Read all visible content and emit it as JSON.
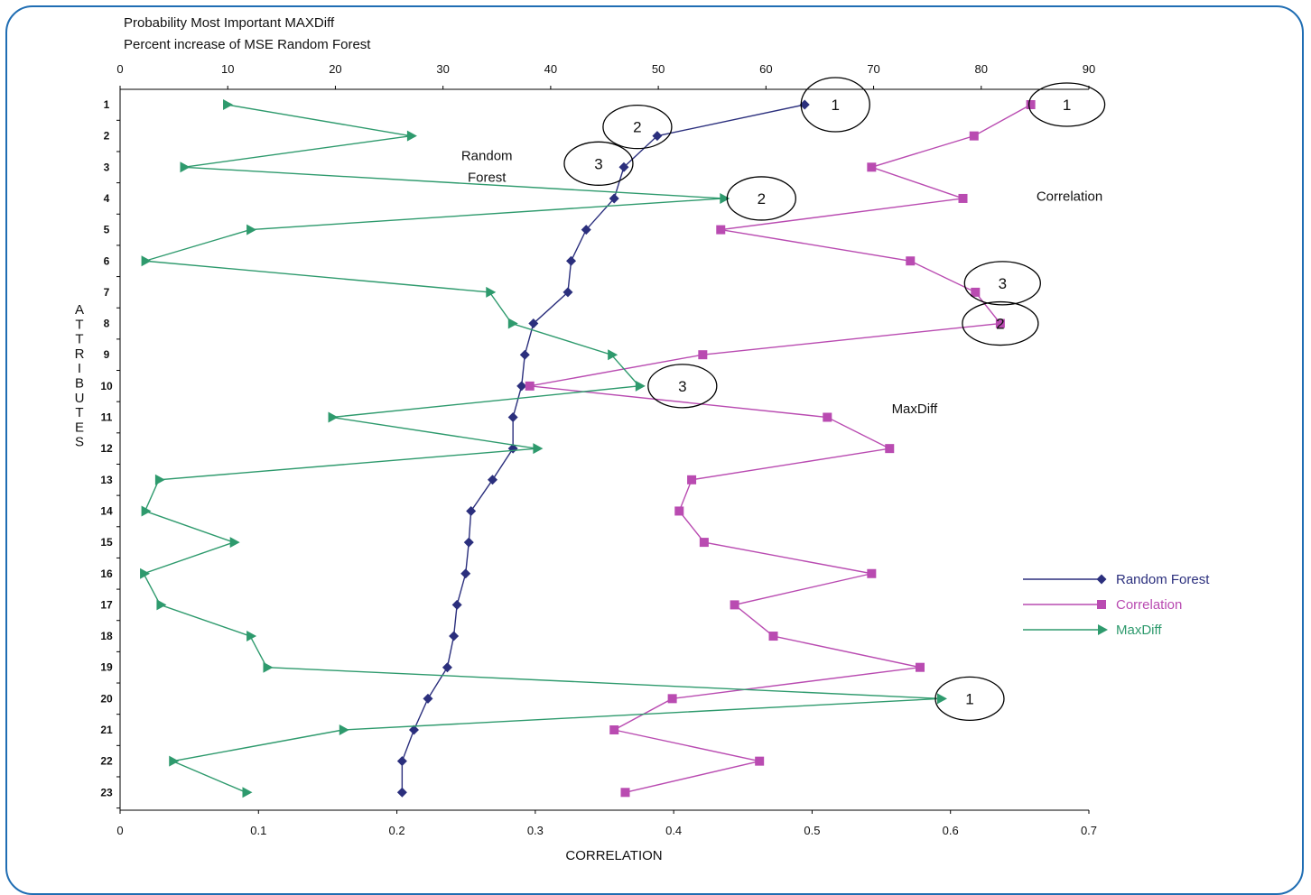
{
  "chart_data": {
    "type": "line",
    "header_lines": [
      "Probability Most Important MAXDiff",
      "Percent increase of MSE Random Forest"
    ],
    "xlabel": "CORRELATION",
    "ylabel": "ATTRIBUTES",
    "top_axis": {
      "range": [
        0,
        90
      ],
      "ticks": [
        "0",
        "10",
        "20",
        "30",
        "40",
        "50",
        "60",
        "70",
        "80",
        "90"
      ]
    },
    "bottom_axis": {
      "range": [
        0,
        0.7
      ],
      "ticks": [
        "0",
        "0.1",
        "0.2",
        "0.3",
        "0.4",
        "0.5",
        "0.6",
        "0.7"
      ]
    },
    "rows": [
      "1",
      "2",
      "3",
      "4",
      "5",
      "6",
      "7",
      "8",
      "9",
      "10",
      "11",
      "12",
      "13",
      "14",
      "15",
      "16",
      "17",
      "18",
      "19",
      "20",
      "21",
      "22",
      "23"
    ],
    "legend_position": "right",
    "series": [
      {
        "name": "Random Forest",
        "axis": "top",
        "color": "#2b2f7d",
        "marker": "diamond",
        "values": [
          63.6,
          49.9,
          46.8,
          45.9,
          43.3,
          41.9,
          41.6,
          38.4,
          37.6,
          37.3,
          36.5,
          36.5,
          34.6,
          32.6,
          32.4,
          32.1,
          31.3,
          31.0,
          30.4,
          28.6,
          27.3,
          26.2,
          26.2
        ]
      },
      {
        "name": "Correlation",
        "axis": "bottom",
        "color": "#b94bb1",
        "marker": "square",
        "values": [
          0.658,
          0.617,
          0.543,
          0.609,
          0.434,
          0.571,
          0.618,
          0.636,
          0.421,
          0.296,
          0.511,
          0.556,
          0.413,
          0.404,
          0.422,
          0.543,
          0.444,
          0.472,
          0.578,
          0.399,
          0.357,
          0.462,
          0.365
        ]
      },
      {
        "name": "MaxDiff",
        "axis": "bottom",
        "color": "#2e9a6d",
        "marker": "triangle",
        "values": [
          0.077,
          0.21,
          0.046,
          0.436,
          0.094,
          0.018,
          0.267,
          0.283,
          0.355,
          0.375,
          0.153,
          0.301,
          0.028,
          0.018,
          0.082,
          0.017,
          0.029,
          0.094,
          0.106,
          0.593,
          0.161,
          0.038,
          0.091
        ]
      }
    ],
    "annotations": [
      {
        "text": "Random",
        "x": 0.265,
        "row": 1.6
      },
      {
        "text": "Forest",
        "x": 0.265,
        "row": 2.3
      },
      {
        "text": "Correlation",
        "x": 0.686,
        "row": 2.9
      },
      {
        "text": "MaxDiff",
        "x": 0.574,
        "row": 9.7
      }
    ],
    "rank_circles": [
      {
        "text": "1",
        "series": "Random Forest",
        "row": 1
      },
      {
        "text": "2",
        "series": "Random Forest",
        "row": 2
      },
      {
        "text": "3",
        "series": "Random Forest",
        "row": 3
      },
      {
        "text": "1",
        "series": "Correlation",
        "row": 1
      },
      {
        "text": "2",
        "series": "Correlation",
        "row": 8
      },
      {
        "text": "3",
        "series": "Correlation",
        "row": 7
      },
      {
        "text": "1",
        "series": "MaxDiff",
        "row": 20
      },
      {
        "text": "2",
        "series": "MaxDiff",
        "row": 4
      },
      {
        "text": "3",
        "series": "MaxDiff",
        "row": 10
      }
    ]
  }
}
